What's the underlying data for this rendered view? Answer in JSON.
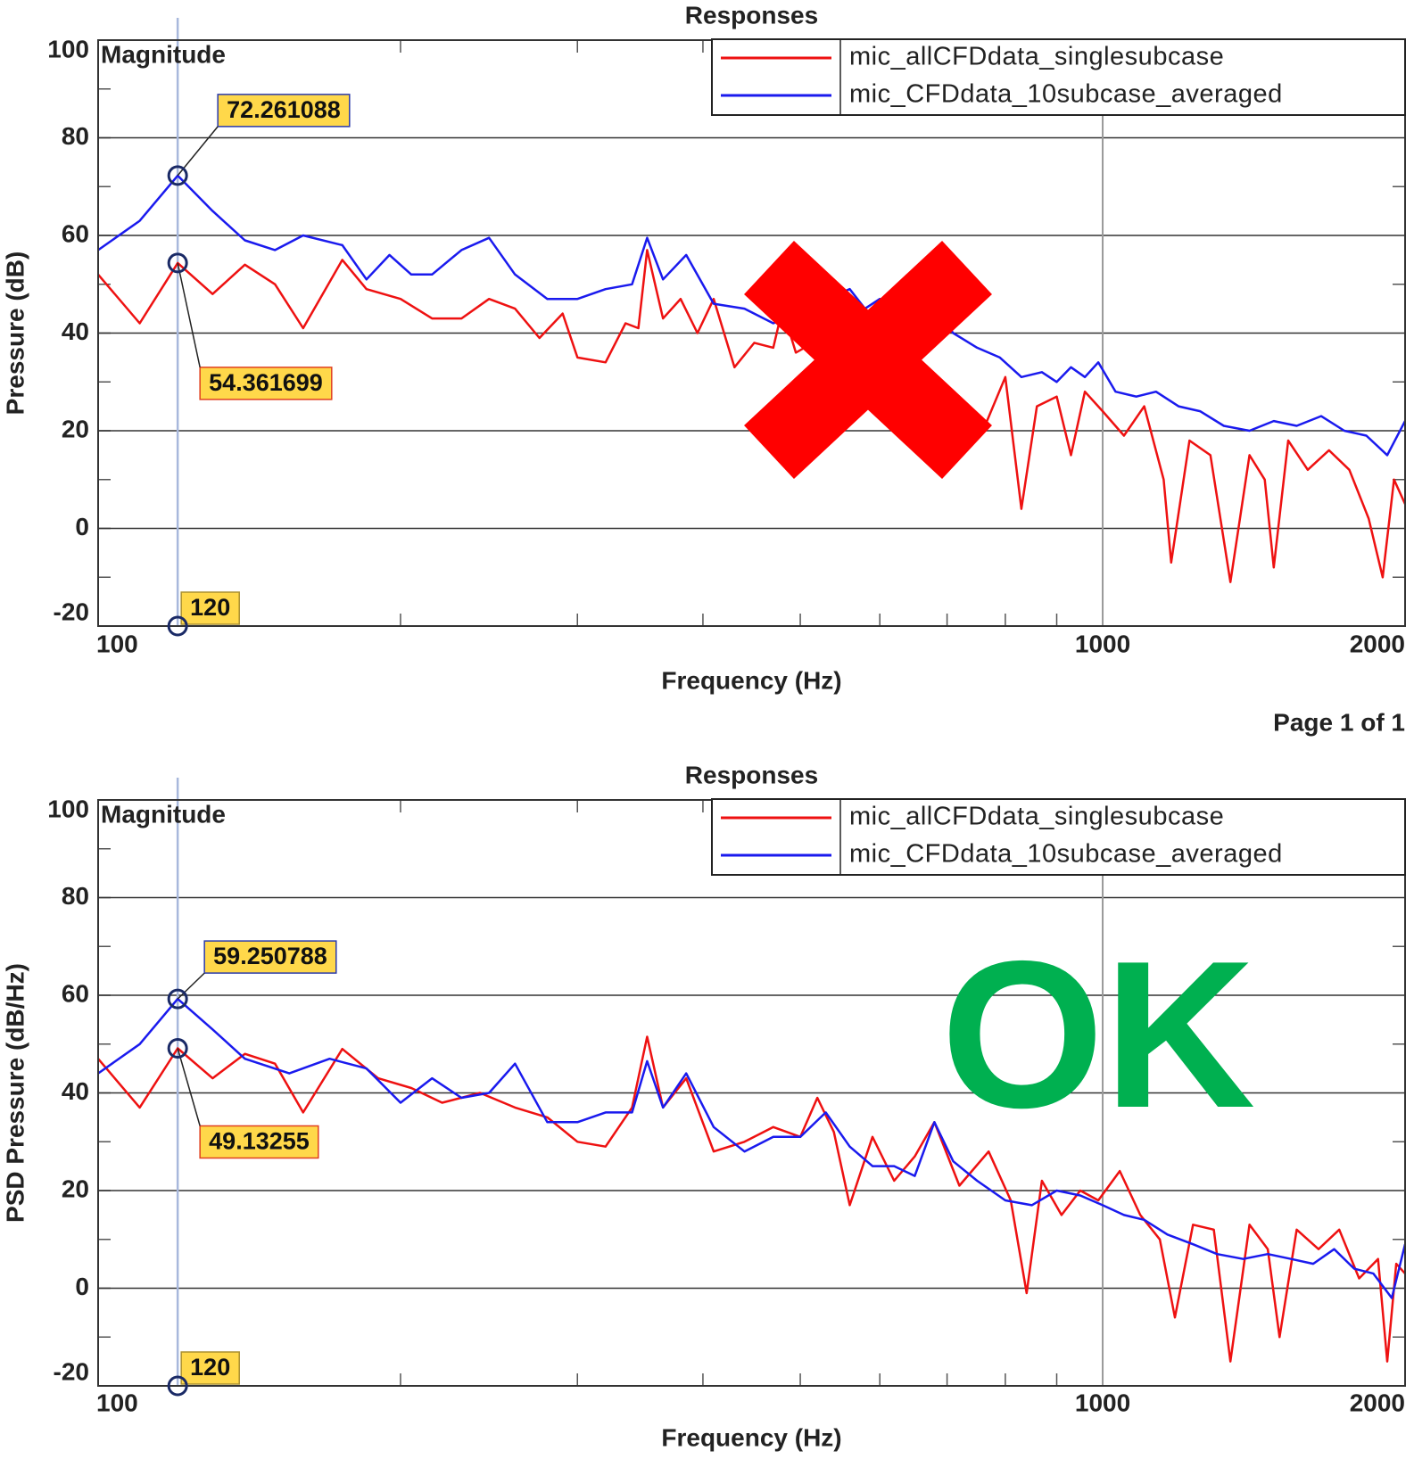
{
  "page_text": "Page 1 of 1",
  "chart_data": [
    {
      "type": "line",
      "title": "Responses",
      "x_label": "Frequency (Hz)",
      "y_label": "Pressure (dB)",
      "corner_text": "Magnitude",
      "x_scale": "log",
      "xlim": [
        100,
        2000
      ],
      "xticks": [
        100,
        1000,
        2000
      ],
      "xminor_ticks": [
        200,
        300,
        400,
        500,
        600,
        700,
        800,
        900
      ],
      "ylim": [
        -20,
        100
      ],
      "yticks": [
        -20,
        0,
        20,
        40,
        60,
        80,
        100
      ],
      "yminor_ticks": [
        -10,
        10,
        30,
        50,
        70,
        90
      ],
      "grid": true,
      "legend": "upper right",
      "cursor_x": 120,
      "series": [
        {
          "name": "mic_allCFDdata_singlesubcase",
          "color": "#ee1111",
          "x": [
            100,
            110,
            120,
            130,
            140,
            150,
            160,
            175,
            185,
            200,
            215,
            230,
            245,
            260,
            275,
            290,
            300,
            320,
            335,
            345,
            352,
            365,
            380,
            395,
            410,
            430,
            450,
            470,
            480,
            495,
            515,
            530,
            760,
            800,
            830,
            860,
            900,
            930,
            960,
            1000,
            1050,
            1100,
            1150,
            1170,
            1220,
            1280,
            1340,
            1400,
            1450,
            1480,
            1530,
            1600,
            1680,
            1760,
            1840,
            1900,
            1950,
            2000
          ],
          "values": [
            52,
            42,
            54.361699,
            48,
            54,
            50,
            41,
            55,
            49,
            47,
            43,
            43,
            47,
            45,
            39,
            44,
            35,
            34,
            42,
            41,
            57,
            43,
            47,
            40,
            47,
            33,
            38,
            37,
            45,
            36,
            38,
            30,
            20,
            31,
            4,
            25,
            27,
            15,
            28,
            24,
            19,
            25,
            10,
            -7,
            18,
            15,
            -11,
            15,
            10,
            -8,
            18,
            12,
            16,
            12,
            2,
            -10,
            10,
            5
          ]
        },
        {
          "name": "mic_CFDdata_10subcase_averaged",
          "color": "#1a1aee",
          "x": [
            100,
            110,
            120,
            130,
            140,
            150,
            160,
            175,
            185,
            195,
            205,
            215,
            230,
            245,
            260,
            280,
            300,
            320,
            340,
            352,
            365,
            385,
            410,
            440,
            470,
            500,
            520,
            545,
            560,
            580,
            600,
            640,
            680,
            710,
            750,
            790,
            830,
            870,
            900,
            930,
            960,
            990,
            1030,
            1080,
            1130,
            1190,
            1250,
            1320,
            1400,
            1480,
            1560,
            1650,
            1740,
            1830,
            1920,
            2000
          ],
          "values": [
            57,
            63,
            72.261088,
            65,
            59,
            57,
            60,
            58,
            51,
            56,
            52,
            52,
            57,
            59.5,
            52,
            47,
            47,
            49,
            50,
            59.5,
            51,
            56,
            46,
            45,
            42,
            44,
            45,
            48,
            49,
            45,
            47,
            42,
            45,
            40,
            37,
            35,
            31,
            32,
            30,
            33,
            31,
            34,
            28,
            27,
            28,
            25,
            24,
            21,
            20,
            22,
            21,
            23,
            20,
            19,
            15,
            22
          ]
        }
      ],
      "annotations": [
        {
          "x": 120,
          "y": 72.261088,
          "label": "72.261088"
        },
        {
          "x": 120,
          "y": 54.361699,
          "label": "54.361699"
        },
        {
          "x": 120,
          "label": "120"
        }
      ]
    },
    {
      "type": "line",
      "title": "Responses",
      "x_label": "Frequency (Hz)",
      "y_label": "PSD Pressure (dB/Hz)",
      "corner_text": "Magnitude",
      "overlay_text": "OK",
      "overlay_color": "#00b050",
      "x_scale": "log",
      "xlim": [
        100,
        2000
      ],
      "xticks": [
        100,
        1000,
        2000
      ],
      "xminor_ticks": [
        200,
        300,
        400,
        500,
        600,
        700,
        800,
        900
      ],
      "ylim": [
        -20,
        100
      ],
      "yticks": [
        -20,
        0,
        20,
        40,
        60,
        80,
        100
      ],
      "yminor_ticks": [
        -10,
        10,
        30,
        50,
        70,
        90
      ],
      "grid": true,
      "legend": "upper right",
      "cursor_x": 120,
      "series": [
        {
          "name": "mic_allCFDdata_singlesubcase",
          "color": "#ee1111",
          "x": [
            100,
            110,
            120,
            130,
            140,
            150,
            160,
            175,
            190,
            205,
            220,
            240,
            260,
            280,
            300,
            320,
            340,
            352,
            365,
            385,
            410,
            440,
            470,
            500,
            520,
            540,
            560,
            590,
            620,
            650,
            680,
            720,
            770,
            810,
            840,
            870,
            910,
            950,
            990,
            1040,
            1090,
            1140,
            1180,
            1230,
            1290,
            1340,
            1400,
            1460,
            1500,
            1560,
            1640,
            1720,
            1800,
            1880,
            1920,
            1960,
            2000
          ],
          "values": [
            47,
            37,
            49.13255,
            43,
            48,
            46,
            36,
            49,
            43,
            41,
            38,
            40,
            37,
            35,
            30,
            29,
            37,
            51.5,
            37,
            43,
            28,
            30,
            33,
            31,
            39,
            32,
            17,
            31,
            22,
            27,
            34,
            21,
            28,
            18,
            -1,
            22,
            15,
            20,
            18,
            24,
            15,
            10,
            -6,
            13,
            12,
            -15,
            13,
            8,
            -10,
            12,
            8,
            12,
            2,
            6,
            -15,
            5,
            3
          ]
        },
        {
          "name": "mic_CFDdata_10subcase_averaged",
          "color": "#1a1aee",
          "x": [
            100,
            110,
            120,
            130,
            140,
            155,
            170,
            185,
            200,
            215,
            230,
            245,
            260,
            280,
            300,
            320,
            340,
            352,
            365,
            385,
            410,
            440,
            470,
            500,
            530,
            560,
            590,
            620,
            650,
            680,
            710,
            750,
            800,
            850,
            900,
            950,
            1000,
            1050,
            1100,
            1160,
            1230,
            1300,
            1380,
            1460,
            1540,
            1620,
            1700,
            1780,
            1860,
            1940,
            2000
          ],
          "values": [
            44,
            50,
            59.250788,
            53,
            47,
            44,
            47,
            45,
            38,
            43,
            39,
            40,
            46,
            34,
            34,
            36,
            36,
            46.5,
            37,
            44,
            33,
            28,
            31,
            31,
            36,
            29,
            25,
            25,
            23,
            34,
            26,
            22,
            18,
            17,
            20,
            19,
            17,
            15,
            14,
            11,
            9,
            7,
            6,
            7,
            6,
            5,
            8,
            4,
            3,
            -2,
            9
          ]
        }
      ],
      "annotations": [
        {
          "x": 120,
          "y": 59.250788,
          "label": "59.250788"
        },
        {
          "x": 120,
          "y": 49.13255,
          "label": "49.13255"
        },
        {
          "x": 120,
          "label": "120"
        }
      ]
    }
  ]
}
